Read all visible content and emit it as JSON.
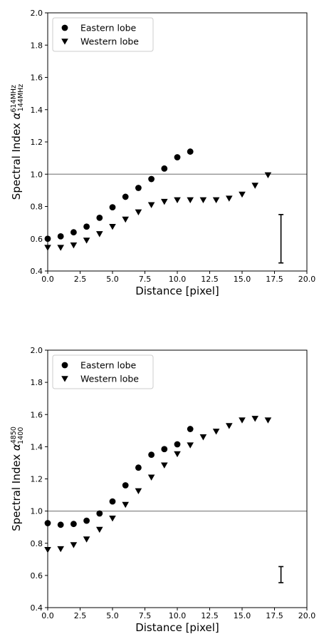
{
  "chart_data": [
    {
      "type": "scatter",
      "xlabel": "Distance [pixel]",
      "ylabel": {
        "prefix": "Spectral Index ",
        "symbol": "α",
        "superscript": "614MHz",
        "subscript": "144MHz"
      },
      "xlim": [
        0.0,
        20.0
      ],
      "ylim": [
        0.4,
        2.0
      ],
      "xticks": [
        "0.0",
        "2.5",
        "5.0",
        "7.5",
        "10.0",
        "12.5",
        "15.0",
        "17.5",
        "20.0"
      ],
      "yticks": [
        "0.4",
        "0.6",
        "0.8",
        "1.0",
        "1.2",
        "1.4",
        "1.6",
        "1.8",
        "2.0"
      ],
      "hline": 1.0,
      "legend_position": "upper-left",
      "series": [
        {
          "name": "Eastern lobe",
          "marker": "circle",
          "x": [
            0,
            1,
            2,
            3,
            4,
            5,
            6,
            7,
            8,
            9,
            10,
            11
          ],
          "y": [
            0.6,
            0.615,
            0.64,
            0.675,
            0.73,
            0.795,
            0.86,
            0.915,
            0.97,
            1.035,
            1.105,
            1.14
          ]
        },
        {
          "name": "Western lobe",
          "marker": "triangle-down",
          "x": [
            0,
            1,
            2,
            3,
            4,
            5,
            6,
            7,
            8,
            9,
            10,
            11,
            12,
            13,
            14,
            15,
            16,
            17
          ],
          "y": [
            0.545,
            0.545,
            0.56,
            0.59,
            0.63,
            0.675,
            0.72,
            0.765,
            0.81,
            0.83,
            0.84,
            0.84,
            0.84,
            0.84,
            0.85,
            0.875,
            0.93,
            0.995
          ]
        }
      ],
      "error_bar": {
        "x": 18,
        "y_low": 0.45,
        "y_high": 0.75
      }
    },
    {
      "type": "scatter",
      "xlabel": "Distance [pixel]",
      "ylabel": {
        "prefix": "Spectral Index ",
        "symbol": "α",
        "superscript": "4850",
        "subscript": "1400"
      },
      "xlim": [
        0.0,
        20.0
      ],
      "ylim": [
        0.4,
        2.0
      ],
      "xticks": [
        "0.0",
        "2.5",
        "5.0",
        "7.5",
        "10.0",
        "12.5",
        "15.0",
        "17.5",
        "20.0"
      ],
      "yticks": [
        "0.4",
        "0.6",
        "0.8",
        "1.0",
        "1.2",
        "1.4",
        "1.6",
        "1.8",
        "2.0"
      ],
      "hline": 1.0,
      "legend_position": "upper-left",
      "series": [
        {
          "name": "Eastern lobe",
          "marker": "circle",
          "x": [
            0,
            1,
            2,
            3,
            4,
            5,
            6,
            7,
            8,
            9,
            10,
            11
          ],
          "y": [
            0.925,
            0.915,
            0.92,
            0.94,
            0.985,
            1.06,
            1.16,
            1.27,
            1.35,
            1.385,
            1.415,
            1.51
          ]
        },
        {
          "name": "Western lobe",
          "marker": "triangle-down",
          "x": [
            0,
            1,
            2,
            3,
            4,
            5,
            6,
            7,
            8,
            9,
            10,
            11,
            12,
            13,
            14,
            15,
            16,
            17
          ],
          "y": [
            0.76,
            0.765,
            0.79,
            0.825,
            0.885,
            0.955,
            1.04,
            1.125,
            1.21,
            1.285,
            1.355,
            1.41,
            1.46,
            1.495,
            1.53,
            1.565,
            1.575,
            1.565
          ]
        }
      ],
      "error_bar": {
        "x": 18,
        "y_low": 0.555,
        "y_high": 0.655
      }
    }
  ]
}
